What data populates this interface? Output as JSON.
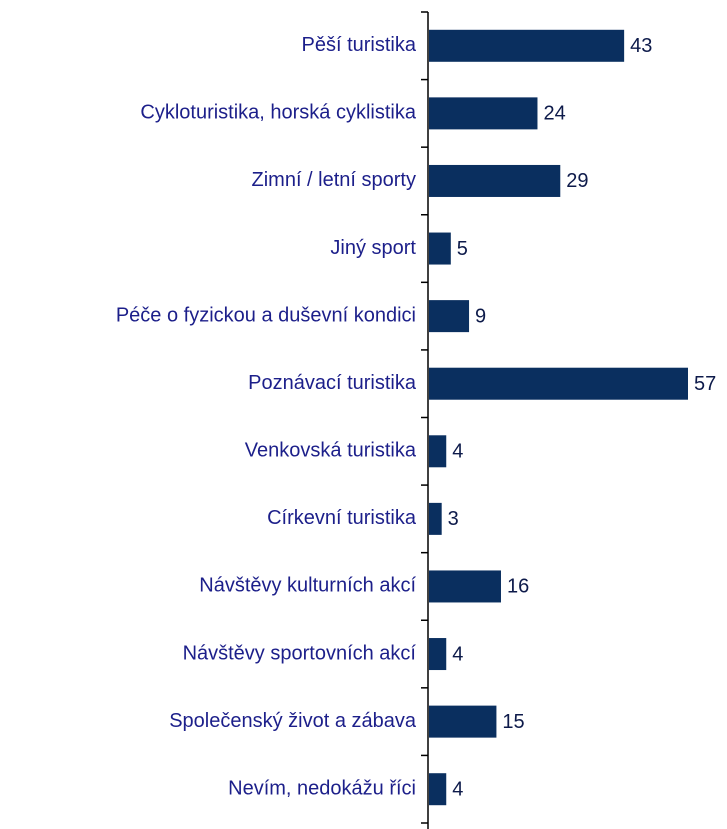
{
  "chart_data": {
    "type": "bar",
    "orientation": "horizontal",
    "categories": [
      "Pěší turistika",
      "Cykloturistika, horská cyklistika",
      "Zimní / letní sporty",
      "Jiný sport",
      "Péče o fyzickou a duševní kondici",
      "Poznávací turistika",
      "Venkovská turistika",
      "Církevní turistika",
      "Návštěvy kulturních akcí",
      "Návštěvy sportovních akcí",
      "Společenský život a zábava",
      "Nevím, nedokážu říci"
    ],
    "values": [
      43,
      24,
      29,
      5,
      9,
      57,
      4,
      3,
      16,
      4,
      15,
      4
    ],
    "color": "#0a2f5f"
  }
}
